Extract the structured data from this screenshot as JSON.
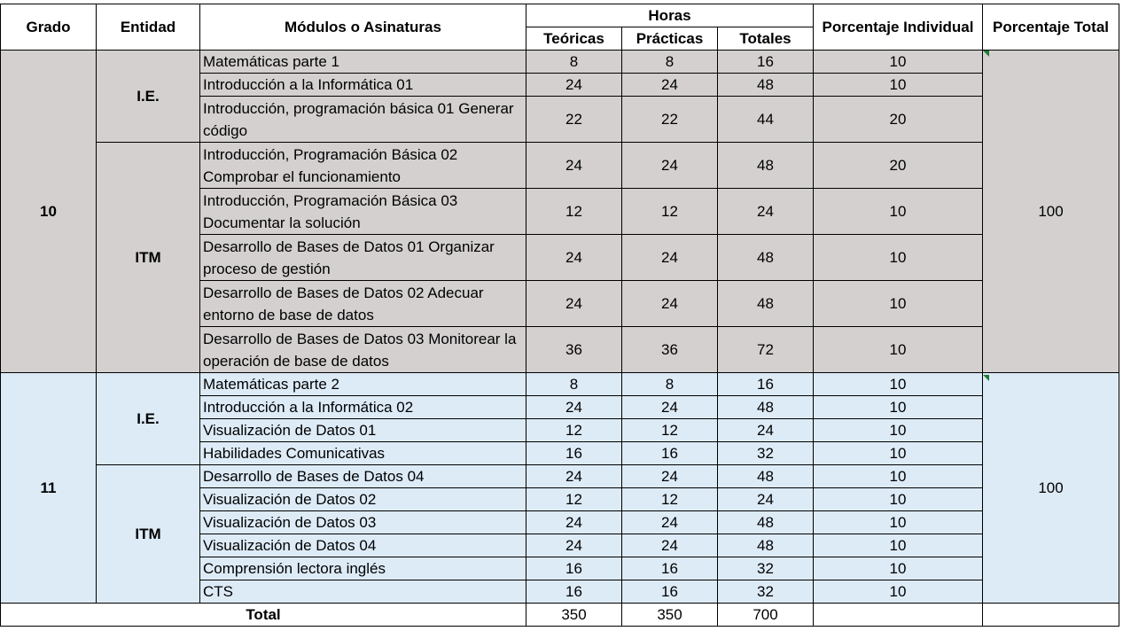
{
  "headers": {
    "grado": "Grado",
    "entidad": "Entidad",
    "modulos": "Módulos o Asinaturas",
    "horas": "Horas",
    "teoricas": "Teóricas",
    "practicas": "Prácticas",
    "totales": "Totales",
    "pct_individual": "Porcentaje Individual",
    "pct_total": "Porcentaje Total"
  },
  "grade10": {
    "grado": "10",
    "pct_total": "100",
    "entity_ie": "I.E.",
    "entity_itm": "ITM",
    "rows": [
      {
        "modulo": "Matemáticas parte 1",
        "teoricas": "8",
        "practicas": "8",
        "totales": "16",
        "pct": "10"
      },
      {
        "modulo": "Introducción a la Informática 01",
        "teoricas": "24",
        "practicas": "24",
        "totales": "48",
        "pct": "10"
      },
      {
        "modulo": "Introducción, programación básica 01 Generar código",
        "teoricas": "22",
        "practicas": "22",
        "totales": "44",
        "pct": "20"
      },
      {
        "modulo": "Introducción, Programación Básica 02 Comprobar el funcionamiento",
        "teoricas": "24",
        "practicas": "24",
        "totales": "48",
        "pct": "20"
      },
      {
        "modulo": "Introducción, Programación Básica 03 Documentar la solución",
        "teoricas": "12",
        "practicas": "12",
        "totales": "24",
        "pct": "10"
      },
      {
        "modulo": "Desarrollo de Bases de Datos 01 Organizar proceso de gestión",
        "teoricas": "24",
        "practicas": "24",
        "totales": "48",
        "pct": "10"
      },
      {
        "modulo": "Desarrollo de Bases de Datos 02 Adecuar entorno de base de datos",
        "teoricas": "24",
        "practicas": "24",
        "totales": "48",
        "pct": "10"
      },
      {
        "modulo": "Desarrollo de Bases de Datos 03 Monitorear la operación de base de datos",
        "teoricas": "36",
        "practicas": "36",
        "totales": "72",
        "pct": "10"
      }
    ]
  },
  "grade11": {
    "grado": "11",
    "pct_total": "100",
    "entity_ie": "I.E.",
    "entity_itm": "ITM",
    "rows": [
      {
        "modulo": "Matemáticas parte 2",
        "teoricas": "8",
        "practicas": "8",
        "totales": "16",
        "pct": "10"
      },
      {
        "modulo": "Introducción a la Informática 02",
        "teoricas": "24",
        "practicas": "24",
        "totales": "48",
        "pct": "10"
      },
      {
        "modulo": "Visualización de Datos 01",
        "teoricas": "12",
        "practicas": "12",
        "totales": "24",
        "pct": "10"
      },
      {
        "modulo": "Habilidades Comunicativas",
        "teoricas": "16",
        "practicas": "16",
        "totales": "32",
        "pct": "10"
      },
      {
        "modulo": "Desarrollo de Bases de Datos 04",
        "teoricas": "24",
        "practicas": "24",
        "totales": "48",
        "pct": "10"
      },
      {
        "modulo": "Visualización de Datos 02",
        "teoricas": "12",
        "practicas": "12",
        "totales": "24",
        "pct": "10"
      },
      {
        "modulo": "Visualización de Datos 03",
        "teoricas": "24",
        "practicas": "24",
        "totales": "48",
        "pct": "10"
      },
      {
        "modulo": "Visualización de Datos 04",
        "teoricas": "24",
        "practicas": "24",
        "totales": "48",
        "pct": "10"
      },
      {
        "modulo": "Comprensión lectora inglés",
        "teoricas": "16",
        "practicas": "16",
        "totales": "32",
        "pct": "10"
      },
      {
        "modulo": "CTS",
        "teoricas": "16",
        "practicas": "16",
        "totales": "32",
        "pct": "10"
      }
    ]
  },
  "total": {
    "label": "Total",
    "teoricas": "350",
    "practicas": "350",
    "totales": "700"
  },
  "colors": {
    "grade10_fill": "#d4d0d0",
    "grade11_fill": "#ddebf7",
    "comment_marker": "#1e7b34"
  }
}
